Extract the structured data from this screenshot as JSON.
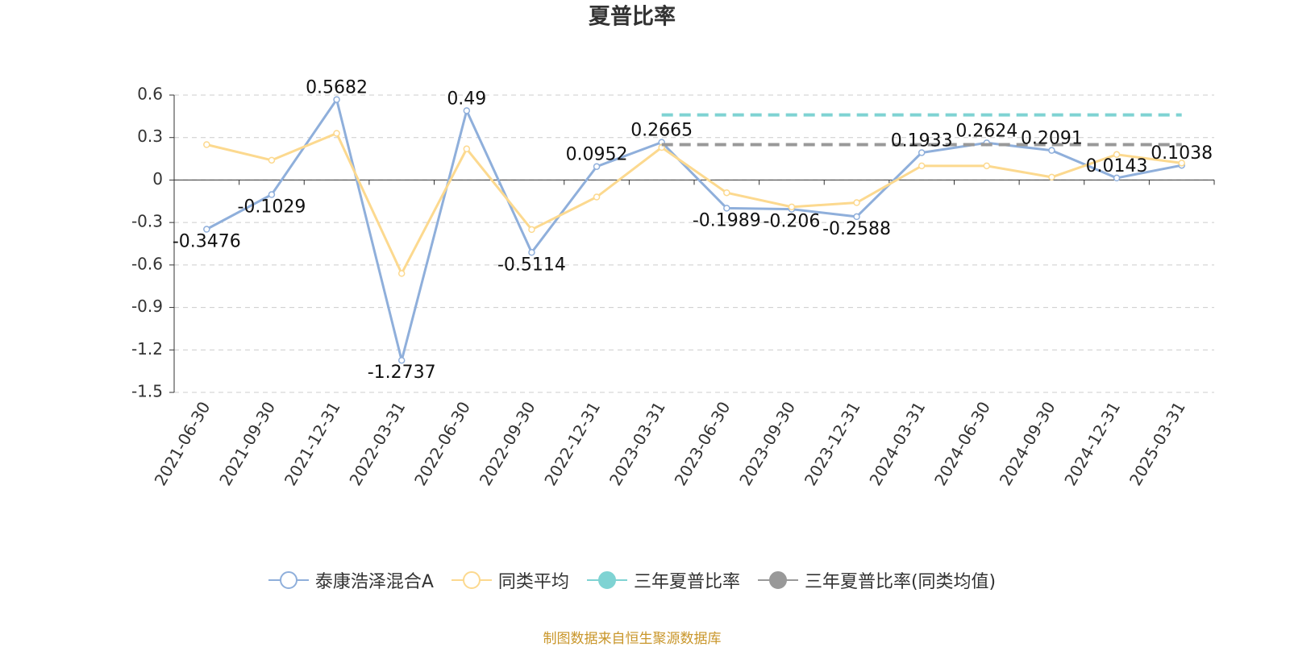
{
  "chart_data": {
    "type": "line",
    "title": "夏普比率",
    "categories": [
      "2021-06-30",
      "2021-09-30",
      "2021-12-31",
      "2022-03-31",
      "2022-06-30",
      "2022-09-30",
      "2022-12-31",
      "2023-03-31",
      "2023-06-30",
      "2023-09-30",
      "2023-12-31",
      "2024-03-31",
      "2024-06-30",
      "2024-09-30",
      "2024-12-31",
      "2025-03-31"
    ],
    "series": [
      {
        "name": "泰康浩泽混合A",
        "color": "#8fafdb",
        "marker": "hollow",
        "show_labels": true,
        "values": [
          -0.3476,
          -0.1029,
          0.5682,
          -1.2737,
          0.49,
          -0.5114,
          0.0952,
          0.2665,
          -0.1989,
          -0.206,
          -0.2588,
          0.1933,
          0.2624,
          0.2091,
          0.0143,
          0.1038
        ]
      },
      {
        "name": "同类平均",
        "color": "#fcd98f",
        "marker": "hollow",
        "values": [
          0.25,
          0.14,
          0.33,
          -0.66,
          0.22,
          -0.35,
          -0.12,
          0.23,
          -0.09,
          -0.19,
          -0.16,
          0.1,
          0.1,
          0.02,
          0.18,
          0.12
        ]
      },
      {
        "name": "三年夏普比率",
        "color": "#7fd3d3",
        "marker": "filled",
        "line_style": "dashed",
        "values": [
          null,
          null,
          null,
          null,
          null,
          null,
          null,
          0.46,
          0.46,
          0.46,
          0.46,
          0.46,
          0.46,
          0.46,
          0.46,
          0.46
        ]
      },
      {
        "name": "三年夏普比率(同类均值)",
        "color": "#999999",
        "marker": "filled",
        "line_style": "dashed",
        "values": [
          null,
          null,
          null,
          null,
          null,
          null,
          null,
          0.25,
          0.25,
          0.25,
          0.25,
          0.25,
          0.25,
          0.25,
          0.25,
          0.25
        ]
      }
    ],
    "ylim": [
      -1.5,
      0.6
    ],
    "yticks": [
      0.6,
      0.3,
      0,
      -0.3,
      -0.6,
      -0.9,
      -1.2,
      -1.5
    ],
    "grid": true,
    "legend": "bottom",
    "source": "制图数据来自恒生聚源数据库"
  }
}
